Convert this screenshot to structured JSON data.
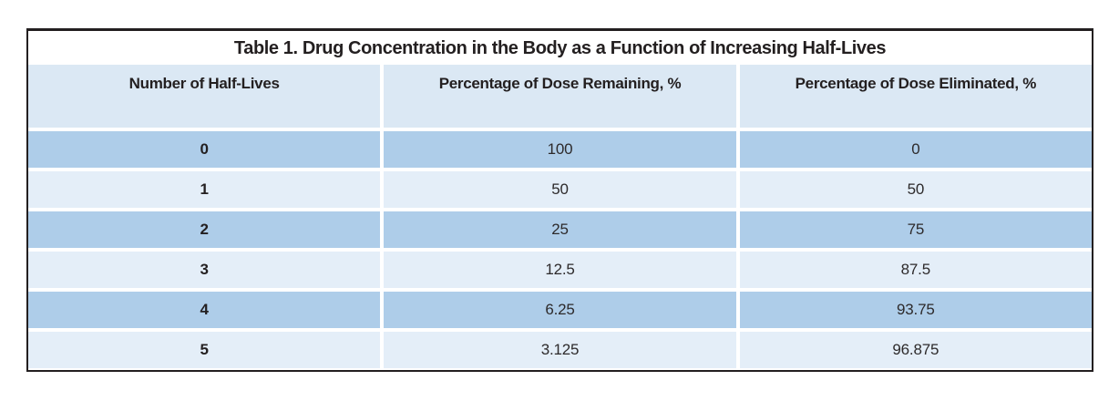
{
  "table": {
    "title": "Table 1. Drug Concentration in the Body as a Function of Increasing Half-Lives",
    "columns": [
      "Number of Half-Lives",
      "Percentage of Dose Remaining, %",
      "Percentage of Dose Eliminated, %"
    ],
    "rows": [
      {
        "half_lives": "0",
        "dose_remaining": "100",
        "dose_eliminated": "0"
      },
      {
        "half_lives": "1",
        "dose_remaining": "50",
        "dose_eliminated": "50"
      },
      {
        "half_lives": "2",
        "dose_remaining": "25",
        "dose_eliminated": "75"
      },
      {
        "half_lives": "3",
        "dose_remaining": "12.5",
        "dose_eliminated": "87.5"
      },
      {
        "half_lives": "4",
        "dose_remaining": "6.25",
        "dose_eliminated": "93.75"
      },
      {
        "half_lives": "5",
        "dose_remaining": "3.125",
        "dose_eliminated": "96.875"
      }
    ]
  },
  "colors": {
    "border": "#231f20",
    "header_bg": "#dbe8f4",
    "row_dark": "#aecde9",
    "row_light": "#e4eef8",
    "text": "#231f20"
  },
  "chart_data": {
    "type": "table",
    "title": "Table 1. Drug Concentration in the Body as a Function of Increasing Half-Lives",
    "categories": [
      0,
      1,
      2,
      3,
      4,
      5
    ],
    "xlabel": "Number of Half-Lives",
    "series": [
      {
        "name": "Percentage of Dose Remaining, %",
        "values": [
          100,
          50,
          25,
          12.5,
          6.25,
          3.125
        ]
      },
      {
        "name": "Percentage of Dose Eliminated, %",
        "values": [
          0,
          50,
          75,
          87.5,
          93.75,
          96.875
        ]
      }
    ]
  }
}
